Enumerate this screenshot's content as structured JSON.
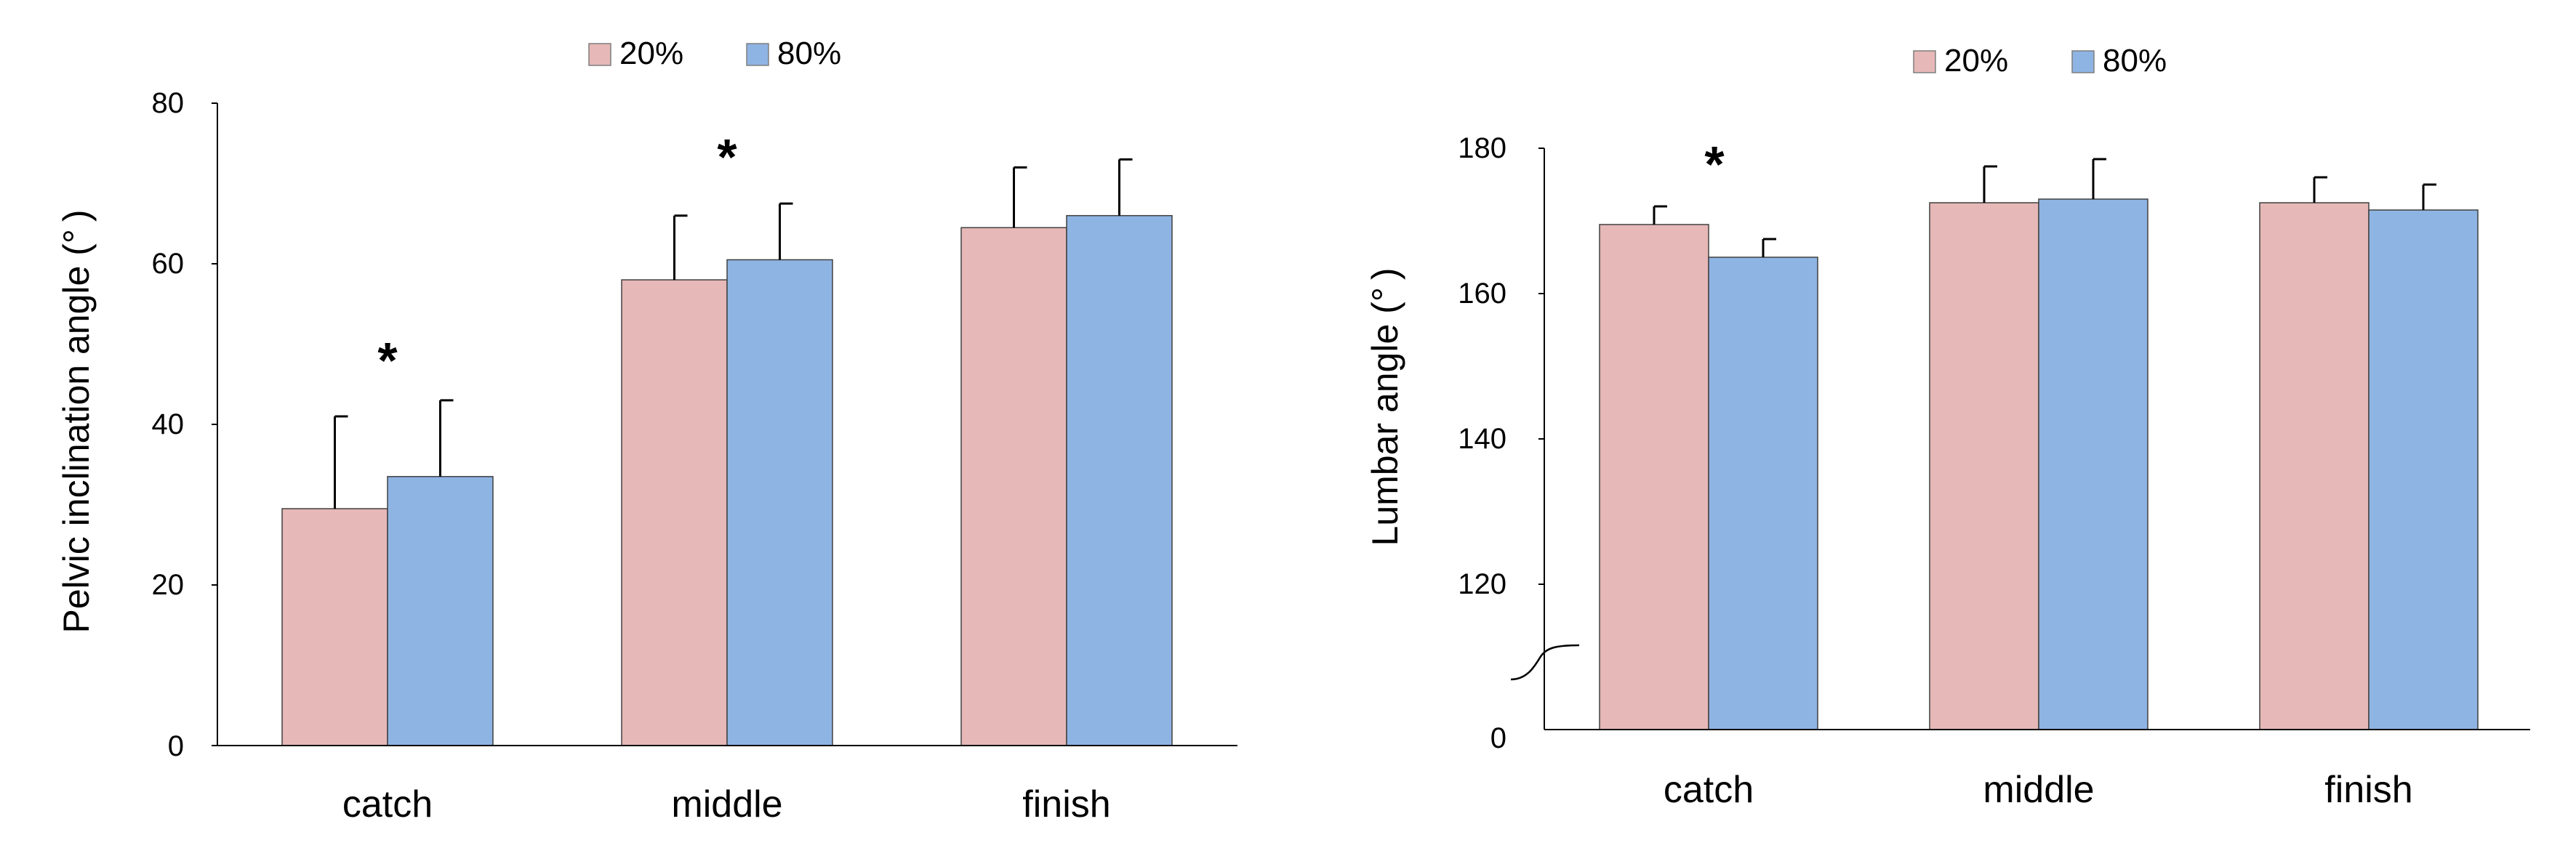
{
  "chart_data": [
    {
      "type": "bar",
      "categories": [
        "catch",
        "middle",
        "finish"
      ],
      "series": [
        {
          "name": "20%",
          "color": "#E6B8B7",
          "values": [
            29.5,
            58,
            64.5
          ],
          "errors": [
            11.5,
            8,
            7.5
          ]
        },
        {
          "name": "80%",
          "color": "#8EB4E3",
          "values": [
            33.5,
            60.5,
            66
          ],
          "errors": [
            9.5,
            7,
            7
          ]
        }
      ],
      "ylabel": "Pelvic inclination angle (° )",
      "ylim": [
        0,
        80
      ],
      "yticks": [
        "0",
        "20",
        "40",
        "60",
        "80"
      ],
      "significance": [
        "*",
        "*",
        ""
      ],
      "legend": "top-center",
      "grid": false
    },
    {
      "type": "bar",
      "categories": [
        "catch",
        "middle",
        "finish"
      ],
      "series": [
        {
          "name": "20%",
          "color": "#E6B8B7",
          "values": [
            169.5,
            172.5,
            172.5
          ],
          "errors": [
            2.5,
            5,
            3.5
          ]
        },
        {
          "name": "80%",
          "color": "#8EB4E3",
          "values": [
            165,
            173,
            171.5
          ],
          "errors": [
            2.5,
            5.5,
            3.5
          ]
        }
      ],
      "ylabel": "Lumbar angle (° )",
      "ylim": [
        100,
        180
      ],
      "axis_break": true,
      "yticks": [
        "0",
        "120",
        "140",
        "160",
        "180"
      ],
      "significance": [
        "*",
        "",
        ""
      ],
      "legend": "top-center",
      "grid": false
    }
  ]
}
